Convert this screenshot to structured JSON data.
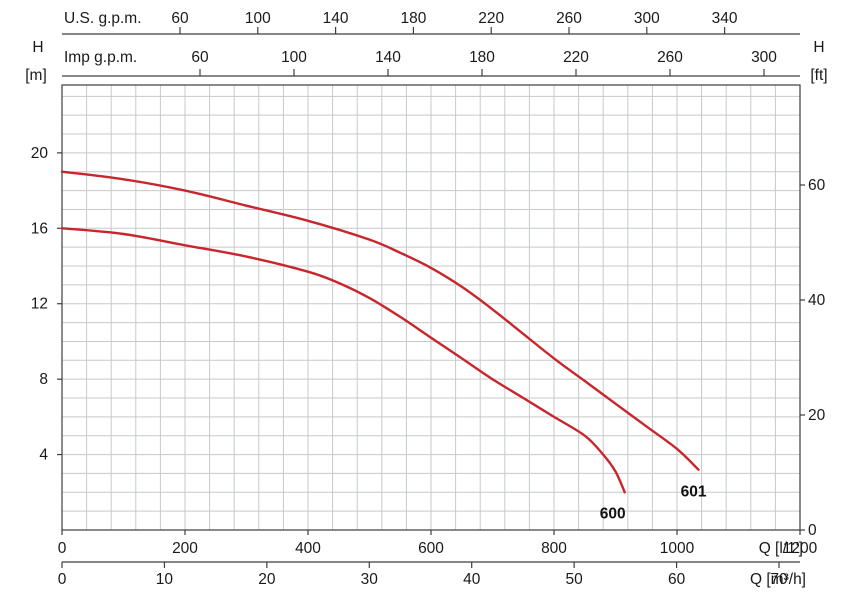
{
  "chart_data": {
    "type": "line",
    "x_axes": {
      "us_gpm": {
        "label": "U.S. g.p.m.",
        "position": "top",
        "ticks": [
          60,
          100,
          140,
          180,
          220,
          260,
          300,
          340
        ]
      },
      "imp_gpm": {
        "label": "Imp g.p.m.",
        "position": "top",
        "ticks": [
          60,
          100,
          140,
          180,
          220,
          260,
          300
        ]
      },
      "l_per_min": {
        "label": "Q [l/1']",
        "position": "bottom",
        "ticks": [
          0,
          200,
          400,
          600,
          800,
          1000,
          1200
        ],
        "range": [
          0,
          1200
        ]
      },
      "m3_per_h": {
        "label": "Q [m³/h]",
        "position": "bottom",
        "ticks": [
          0,
          10,
          20,
          30,
          40,
          50,
          60,
          70
        ]
      }
    },
    "y_axes": {
      "h_m": {
        "label": "H",
        "unit": "[m]",
        "position": "left",
        "ticks": [
          4,
          8,
          12,
          16,
          20
        ],
        "range": [
          0,
          23.6
        ]
      },
      "h_ft": {
        "label": "H",
        "unit": "[ft]",
        "position": "right",
        "ticks": [
          0,
          20,
          40,
          60
        ]
      }
    },
    "grid": {
      "on": true,
      "x_step_l_min": 40,
      "y_step_m": 1
    },
    "series": [
      {
        "name": "601",
        "color": "#c8262c",
        "label_offset": [
          -5,
          27
        ],
        "points_q_lmin_h_m": [
          [
            0,
            19.0
          ],
          [
            100,
            18.6
          ],
          [
            200,
            18.0
          ],
          [
            300,
            17.2
          ],
          [
            400,
            16.4
          ],
          [
            500,
            15.4
          ],
          [
            550,
            14.7
          ],
          [
            600,
            13.9
          ],
          [
            650,
            12.9
          ],
          [
            700,
            11.7
          ],
          [
            750,
            10.4
          ],
          [
            800,
            9.1
          ],
          [
            850,
            7.9
          ],
          [
            900,
            6.7
          ],
          [
            950,
            5.5
          ],
          [
            1000,
            4.3
          ],
          [
            1035,
            3.2
          ]
        ]
      },
      {
        "name": "600",
        "color": "#c8262c",
        "label_offset": [
          -12,
          26
        ],
        "points_q_lmin_h_m": [
          [
            0,
            16.0
          ],
          [
            100,
            15.7
          ],
          [
            200,
            15.1
          ],
          [
            300,
            14.5
          ],
          [
            400,
            13.7
          ],
          [
            450,
            13.1
          ],
          [
            500,
            12.3
          ],
          [
            550,
            11.3
          ],
          [
            600,
            10.2
          ],
          [
            650,
            9.1
          ],
          [
            700,
            8.0
          ],
          [
            750,
            7.0
          ],
          [
            800,
            6.0
          ],
          [
            850,
            5.0
          ],
          [
            880,
            4.0
          ],
          [
            900,
            3.1
          ],
          [
            915,
            2.0
          ]
        ]
      }
    ],
    "series_label_color": "#111111",
    "legend": "none"
  },
  "colors": {
    "background": "#ffffff",
    "grid": "#c6cacd",
    "axis": "#3d3d3d",
    "text": "#1a1a1a",
    "curve": "#c8262c"
  }
}
